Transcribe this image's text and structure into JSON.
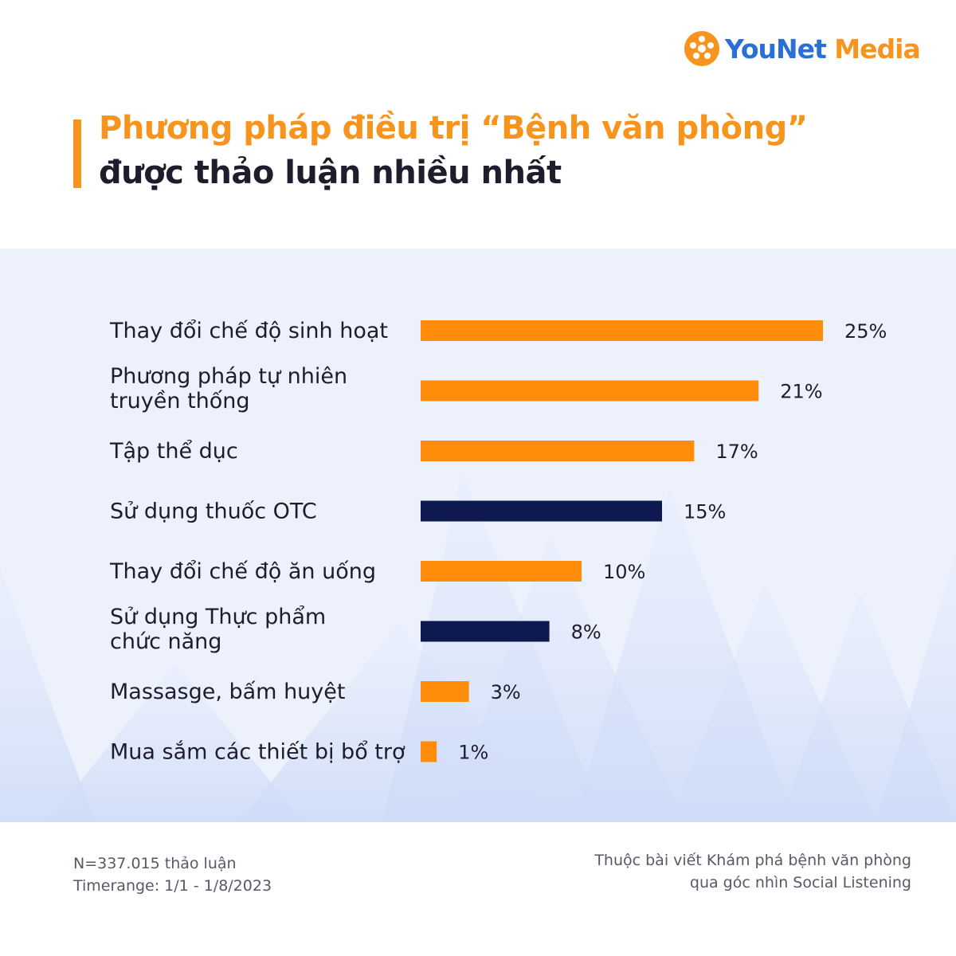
{
  "brand": {
    "logo_you": "YouNet ",
    "logo_media": "Media",
    "icon": "younet-flower-icon",
    "accent_color": "#f7941d",
    "secondary_color": "#0e1a4f"
  },
  "header": {
    "title_line1": "Phương pháp điều trị “Bệnh văn phòng”",
    "title_line2": "được thảo luận nhiều nhất"
  },
  "chart_data": {
    "type": "bar",
    "orientation": "horizontal",
    "categories": [
      [
        "Thay đổi chế độ sinh hoạt"
      ],
      [
        "Phương pháp tự nhiên",
        "truyền thống"
      ],
      [
        "Tập thể dục"
      ],
      [
        "Sử dụng thuốc OTC"
      ],
      [
        "Thay đổi chế độ ăn uống"
      ],
      [
        "Sử dụng Thực phẩm",
        "chức năng"
      ],
      [
        "Massasge, bấm huyệt"
      ],
      [
        "Mua sắm các thiết bị bổ trợ"
      ]
    ],
    "values": [
      25,
      21,
      17,
      15,
      10,
      8,
      3,
      1
    ],
    "value_labels": [
      "25%",
      "21%",
      "17%",
      "15%",
      "10%",
      "8%",
      "3%",
      "1%"
    ],
    "bar_colors": [
      "#ff8c0a",
      "#ff8c0a",
      "#ff8c0a",
      "#0e1a4f",
      "#ff8c0a",
      "#0e1a4f",
      "#ff8c0a",
      "#ff8c0a"
    ],
    "unit": "%",
    "xlim": [
      0,
      25
    ],
    "grid": false,
    "legend": "none"
  },
  "footer": {
    "sample": "N=337.015 thảo luận",
    "timerange": "Timerange: 1/1 - 1/8/2023",
    "source_line1": "Thuộc bài viết Khám phá bệnh văn phòng",
    "source_line2": "qua góc nhìn Social Listening"
  }
}
